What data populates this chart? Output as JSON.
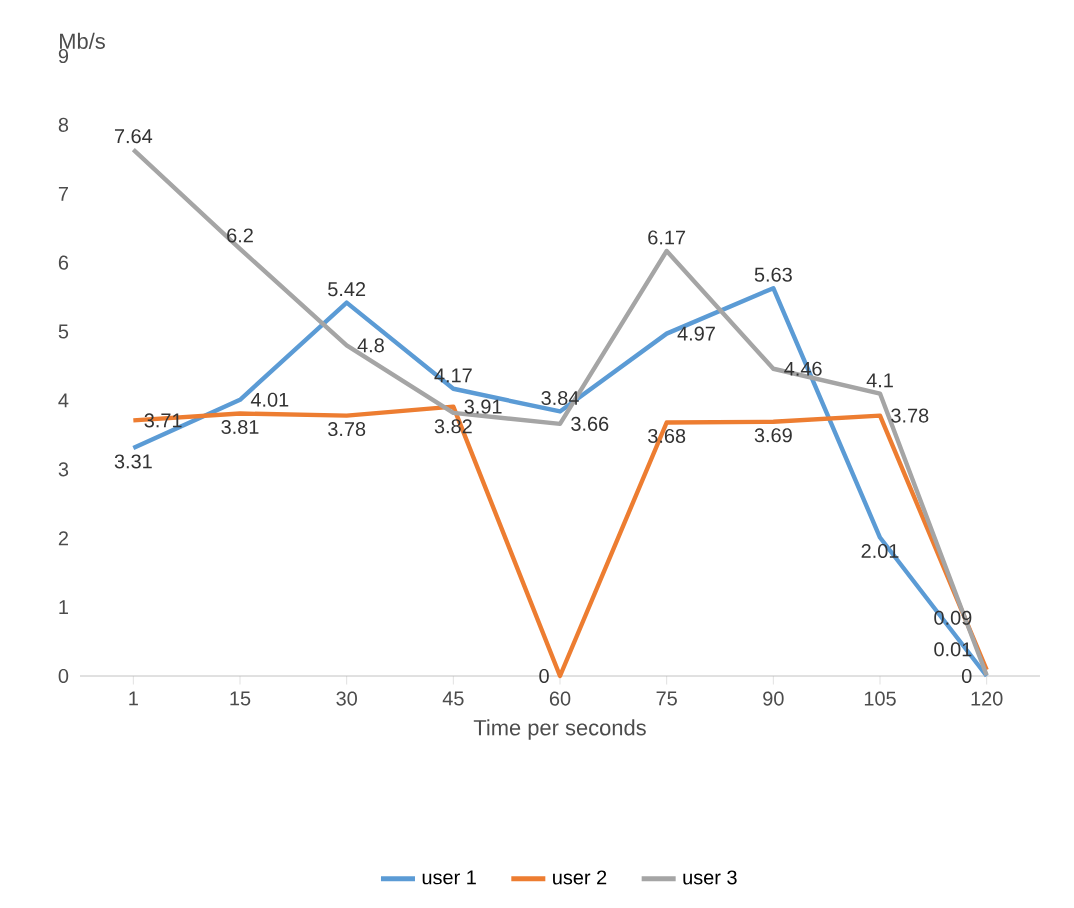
{
  "chart_data": {
    "type": "line",
    "ylabel": "Mb/s",
    "xlabel": "Time per seconds",
    "categories": [
      "1",
      "15",
      "30",
      "45",
      "60",
      "75",
      "90",
      "105",
      "120"
    ],
    "series": [
      {
        "name": "user 1",
        "color": "#5b9bd5",
        "values": [
          3.31,
          4.01,
          5.42,
          4.17,
          3.84,
          4.97,
          5.63,
          2.01,
          0
        ]
      },
      {
        "name": "user 2",
        "color": "#ed7d31",
        "values": [
          3.71,
          3.81,
          3.78,
          3.91,
          0,
          3.68,
          3.69,
          3.78,
          0.09
        ]
      },
      {
        "name": "user 3",
        "color": "#a5a5a5",
        "values": [
          7.64,
          6.2,
          4.8,
          3.82,
          3.66,
          6.17,
          4.46,
          4.1,
          0.01
        ]
      }
    ],
    "ylim": [
      0,
      9
    ],
    "yticks": [
      0,
      1,
      2,
      3,
      4,
      5,
      6,
      7,
      8,
      9
    ],
    "grid": false,
    "legend": "bottom",
    "data_labels": true,
    "marker": "none",
    "line_style": "solid"
  }
}
